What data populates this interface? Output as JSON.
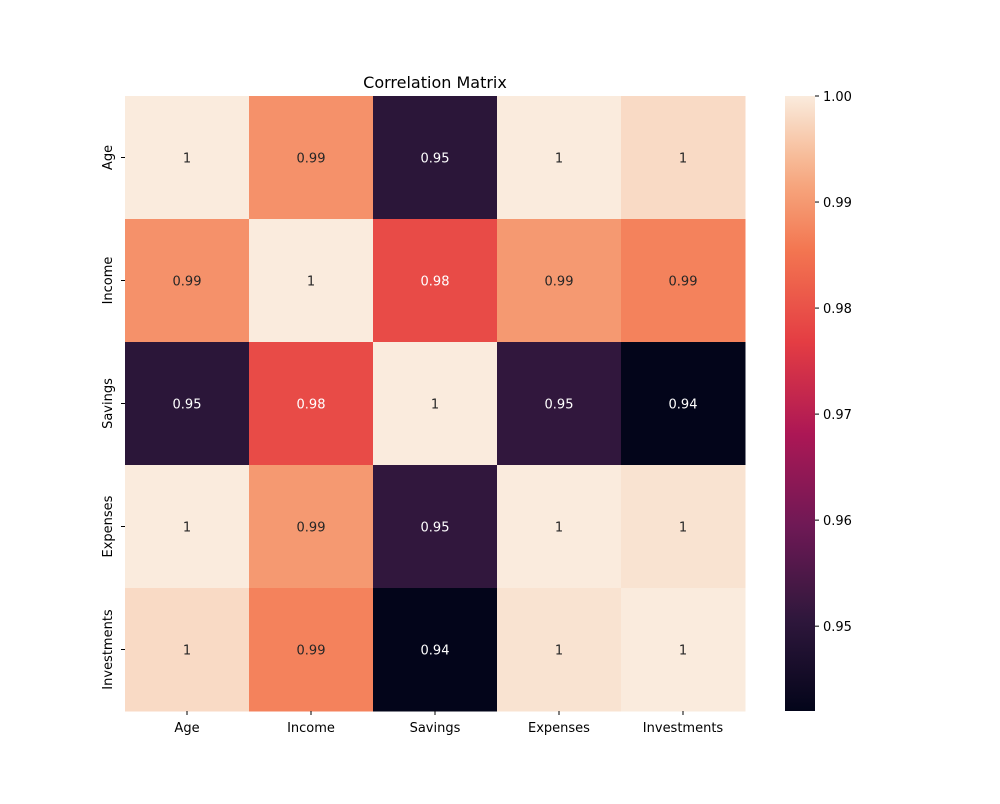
{
  "chart_data": {
    "type": "heatmap",
    "title": "Correlation Matrix",
    "x_labels": [
      "Age",
      "Income",
      "Savings",
      "Expenses",
      "Investments"
    ],
    "y_labels": [
      "Age",
      "Income",
      "Savings",
      "Expenses",
      "Investments"
    ],
    "values": [
      [
        1.0,
        0.989,
        0.95,
        1.0,
        0.998
      ],
      [
        0.989,
        1.0,
        0.979,
        0.99,
        0.987
      ],
      [
        0.95,
        0.979,
        1.0,
        0.951,
        0.942
      ],
      [
        1.0,
        0.99,
        0.951,
        1.0,
        0.999
      ],
      [
        0.998,
        0.987,
        0.942,
        0.999,
        1.0
      ]
    ],
    "annotations": [
      [
        "1",
        "0.99",
        "0.95",
        "1",
        "1"
      ],
      [
        "0.99",
        "1",
        "0.98",
        "0.99",
        "0.99"
      ],
      [
        "0.95",
        "0.98",
        "1",
        "0.95",
        "0.94"
      ],
      [
        "1",
        "0.99",
        "0.95",
        "1",
        "1"
      ],
      [
        "1",
        "0.99",
        "0.94",
        "1",
        "1"
      ]
    ],
    "colorbar": {
      "range": [
        0.942,
        1.0
      ],
      "ticks": [
        "1.00",
        "0.99",
        "0.98",
        "0.97",
        "0.96",
        "0.95"
      ]
    },
    "colormap": "rocket",
    "legend": false,
    "grid": false
  }
}
